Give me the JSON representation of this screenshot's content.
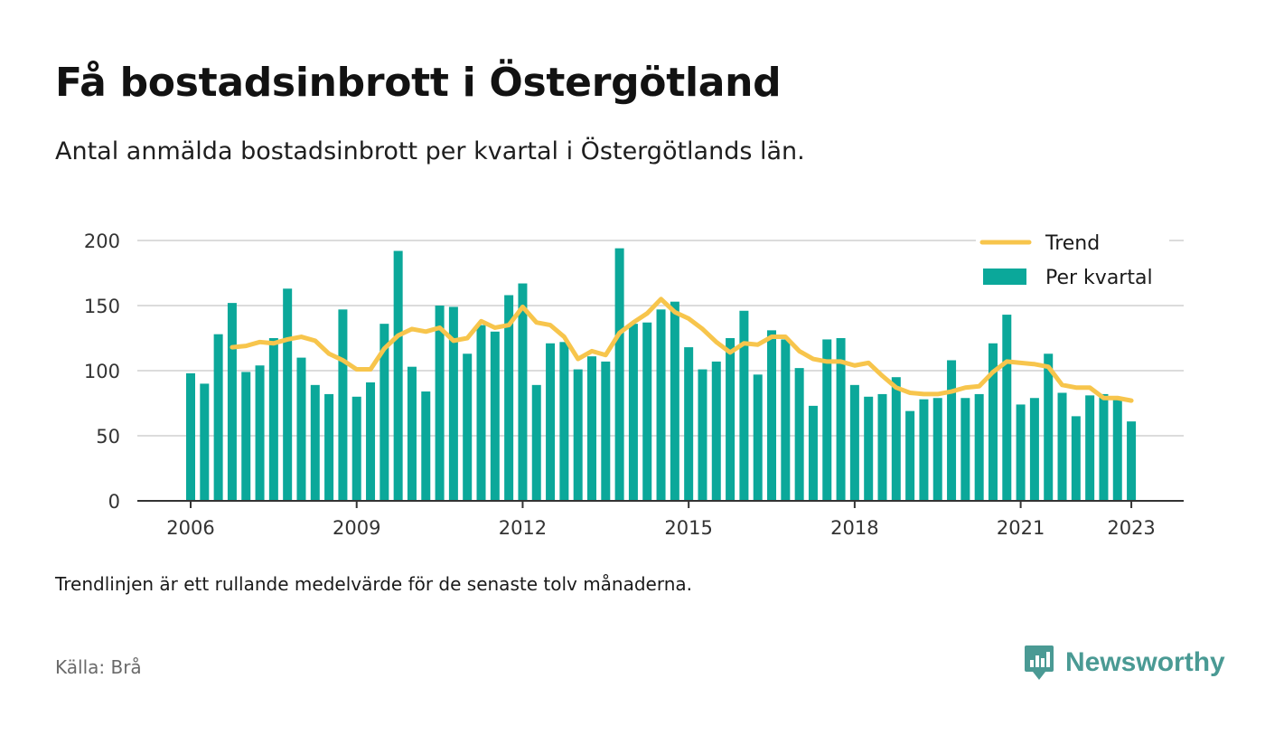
{
  "header": {
    "title": "Få bostadsinbrott i Östergötland",
    "subtitle": "Antal anmälda bostadsinbrott per kvartal i Östergötlands län."
  },
  "footer": {
    "note": "Trendlinjen är ett rullande medelvärde för de senaste tolv månaderna.",
    "source": "Källa: Brå",
    "brand": "Newsworthy"
  },
  "colors": {
    "bars": "#0ba89a",
    "trend": "#f7c54c",
    "grid": "#dcdcdc",
    "axis": "#333333",
    "brand": "#4a9a94"
  },
  "chart_data": {
    "type": "bar",
    "x_start": "2006 Q1",
    "x_end": "2023 Q1",
    "x_ticks": [
      "2006",
      "2009",
      "2012",
      "2015",
      "2018",
      "2021",
      "2023"
    ],
    "x_tick_positions": [
      0,
      12,
      24,
      36,
      48,
      60,
      68
    ],
    "y_ticks": [
      "0",
      "50",
      "100",
      "150",
      "200"
    ],
    "ylim": [
      0,
      200
    ],
    "grid": true,
    "legend_position": "top-right",
    "series": [
      {
        "name": "Per kvartal",
        "type": "bar",
        "values": [
          98,
          90,
          128,
          152,
          99,
          104,
          125,
          163,
          110,
          89,
          82,
          147,
          80,
          91,
          136,
          192,
          103,
          84,
          150,
          149,
          113,
          135,
          130,
          158,
          167,
          89,
          121,
          122,
          101,
          111,
          107,
          194,
          136,
          137,
          147,
          153,
          118,
          101,
          107,
          125,
          146,
          97,
          131,
          124,
          102,
          73,
          124,
          125,
          89,
          80,
          82,
          95,
          69,
          78,
          79,
          108,
          79,
          82,
          121,
          143,
          74,
          79,
          113,
          83,
          65,
          81,
          82,
          78,
          61
        ]
      },
      {
        "name": "Trend",
        "type": "line",
        "start_index": 3,
        "values": [
          118,
          119,
          122,
          121,
          124,
          126,
          123,
          113,
          108,
          101,
          101,
          117,
          127,
          132,
          130,
          133,
          123,
          125,
          138,
          133,
          135,
          149,
          137,
          135,
          126,
          109,
          115,
          112,
          129,
          137,
          144,
          155,
          145,
          140,
          132,
          122,
          114,
          121,
          120,
          126,
          126,
          115,
          109,
          107,
          107,
          104,
          106,
          96,
          87,
          83,
          82,
          82,
          84,
          87,
          88,
          99,
          107,
          106,
          105,
          103,
          89,
          87,
          87,
          79,
          79,
          77
        ]
      }
    ]
  }
}
